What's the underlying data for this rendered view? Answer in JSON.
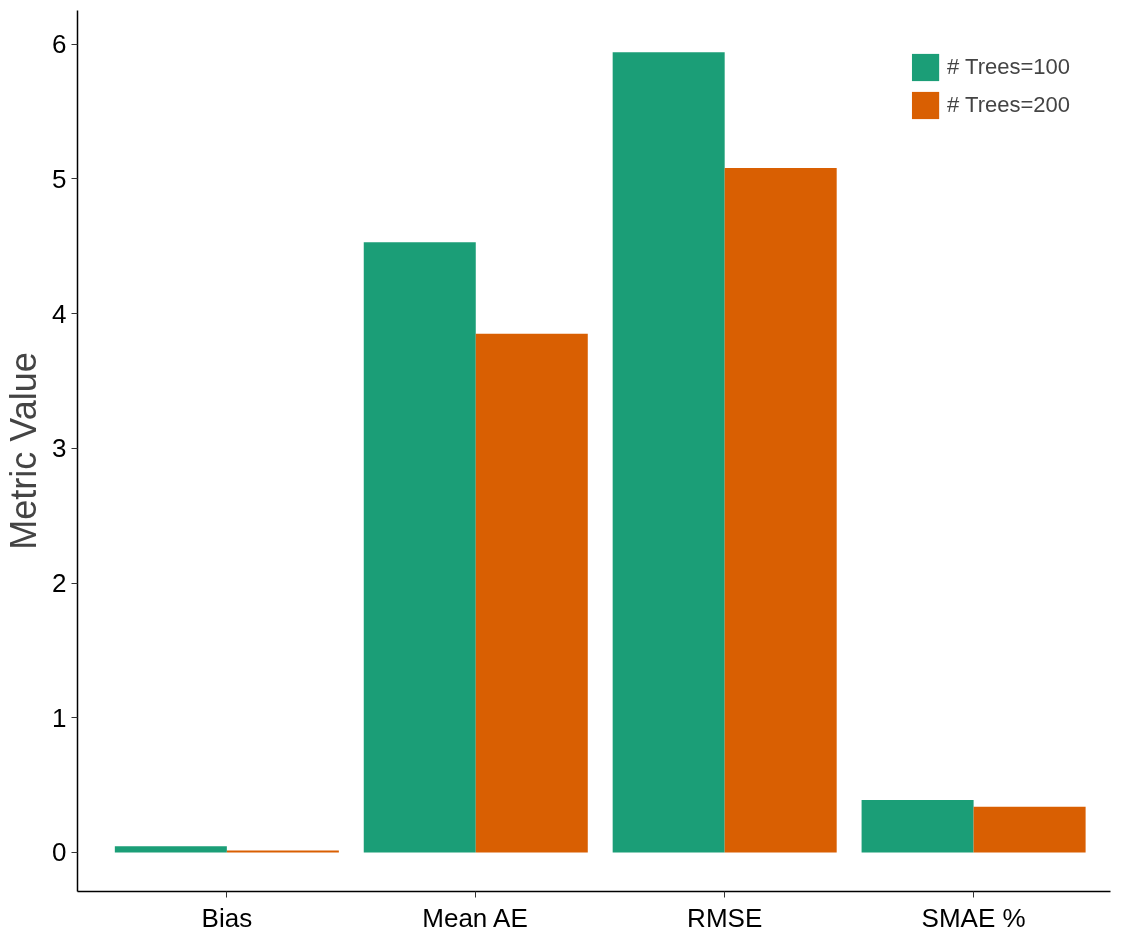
{
  "chart_data": {
    "type": "bar",
    "ylabel": "Metric Value",
    "categories": [
      "Bias",
      "Mean AE",
      "RMSE",
      "SMAE %"
    ],
    "series": [
      {
        "name": "# Trees=100",
        "color": "#1b9e77",
        "values": [
          0.045,
          4.53,
          5.94,
          0.39
        ]
      },
      {
        "name": "# Trees=200",
        "color": "#d95f02",
        "values": [
          0.015,
          3.85,
          5.08,
          0.34
        ]
      }
    ],
    "ylim": [
      -0.29,
      6.25
    ],
    "yticks": [
      0,
      1,
      2,
      3,
      4,
      5,
      6
    ],
    "grid": false,
    "legend": "top right"
  }
}
